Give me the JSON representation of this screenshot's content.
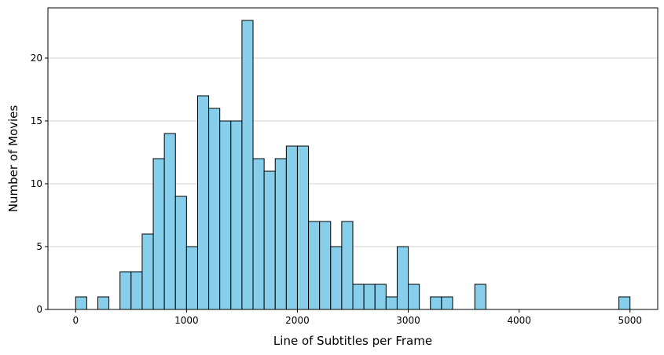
{
  "chart_data": {
    "type": "bar",
    "title": "",
    "xlabel": "Line of Subtitles per Frame",
    "ylabel": "Number of Movies",
    "xlim": [
      -250,
      5250
    ],
    "ylim": [
      0,
      24
    ],
    "x_ticks": [
      0,
      1000,
      2000,
      3000,
      4000,
      5000
    ],
    "y_ticks": [
      0,
      5,
      10,
      15,
      20
    ],
    "grid": "y-only",
    "bar_color": "#87ceeb",
    "bin_width": 100,
    "bin_start": 0,
    "values": [
      1,
      0,
      1,
      0,
      3,
      3,
      6,
      12,
      14,
      9,
      5,
      17,
      16,
      15,
      15,
      23,
      12,
      11,
      12,
      13,
      13,
      7,
      7,
      5,
      7,
      2,
      2,
      2,
      1,
      5,
      2,
      0,
      1,
      1,
      0,
      0,
      2,
      0,
      0,
      0,
      0,
      0,
      0,
      0,
      0,
      0,
      0,
      0,
      0,
      1
    ]
  }
}
